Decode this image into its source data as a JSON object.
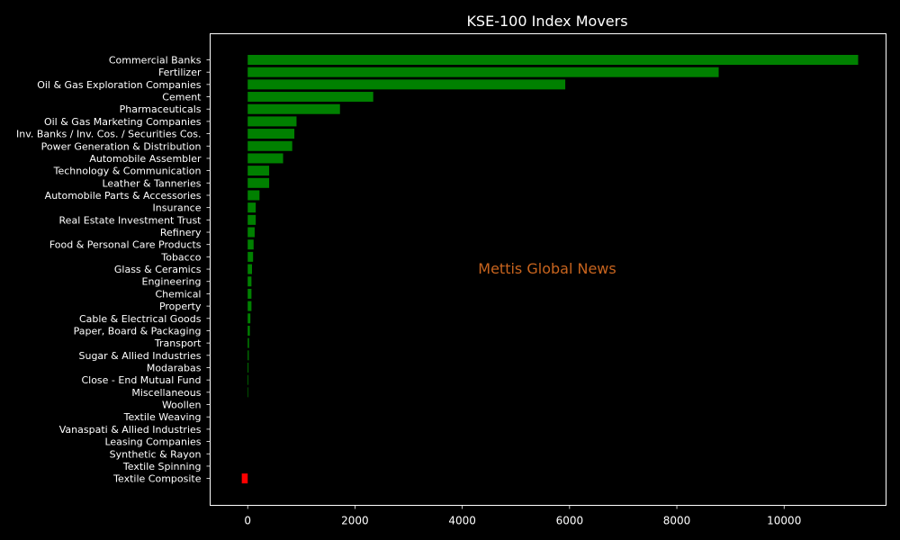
{
  "chart_data": {
    "type": "bar",
    "orientation": "horizontal",
    "title": "KSE-100 Index Movers",
    "xlabel": "",
    "ylabel": "",
    "xlim": [
      -700,
      11900
    ],
    "xticks": [
      0,
      2000,
      4000,
      6000,
      8000,
      10000
    ],
    "grid": false,
    "legend": "none",
    "categories": [
      "Commercial Banks",
      "Fertilizer",
      "Oil & Gas Exploration Companies",
      "Cement",
      "Pharmaceuticals",
      "Oil & Gas Marketing Companies",
      "Inv. Banks / Inv. Cos. / Securities Cos.",
      "Power Generation & Distribution",
      "Automobile Assembler",
      "Technology & Communication",
      "Leather & Tanneries",
      "Automobile Parts & Accessories",
      "Insurance",
      "Real Estate Investment Trust",
      "Refinery",
      "Food & Personal Care Products",
      "Tobacco",
      "Glass & Ceramics",
      "Engineering",
      "Chemical",
      "Property",
      "Cable & Electrical Goods",
      "Paper, Board & Packaging",
      "Transport",
      "Sugar & Allied Industries",
      "Modarabas",
      "Close - End Mutual Fund",
      "Miscellaneous",
      "Woollen",
      "Textile Weaving",
      "Vanaspati & Allied Industries",
      "Leasing Companies",
      "Synthetic & Rayon",
      "Textile Spinning",
      "Textile Composite"
    ],
    "values": [
      11380,
      8780,
      5920,
      2340,
      1720,
      910,
      870,
      830,
      660,
      400,
      400,
      220,
      150,
      150,
      130,
      110,
      100,
      80,
      70,
      70,
      70,
      50,
      40,
      25,
      20,
      15,
      12,
      10,
      0,
      0,
      0,
      0,
      0,
      0,
      -110
    ],
    "colors": {
      "positive": "#008000",
      "negative": "#ff0000"
    }
  },
  "watermark": {
    "text": "Mettis Global News",
    "color": "#c8641e"
  }
}
